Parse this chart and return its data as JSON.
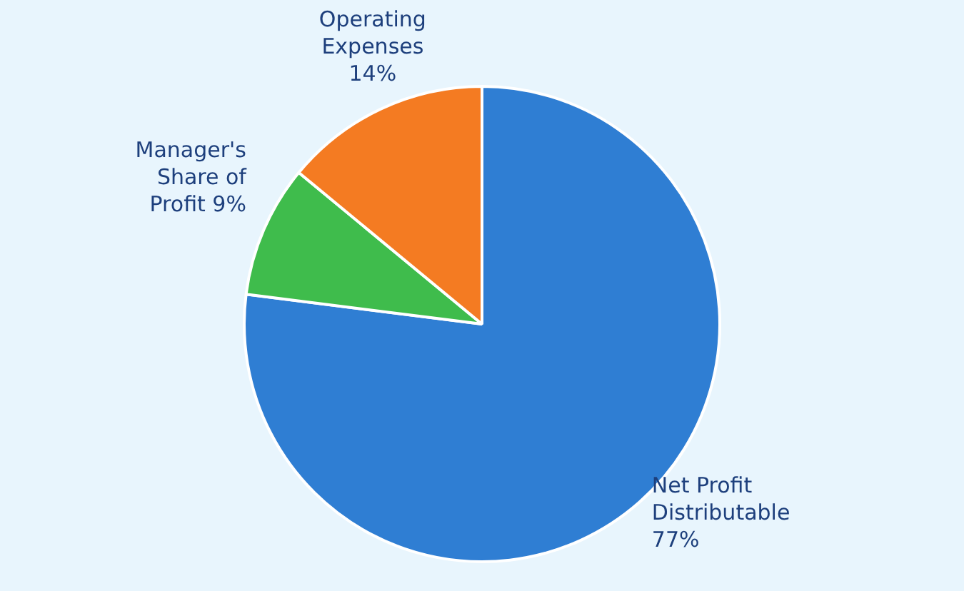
{
  "chart_data": {
    "type": "pie",
    "categories": [
      "Net Profit Distributable",
      "Manager's Share of Profit",
      "Operating Expenses"
    ],
    "values": [
      77,
      9,
      14
    ],
    "value_labels": [
      "77%",
      "9%",
      "14%"
    ],
    "colors": [
      "#2f7ed3",
      "#3fbc4c",
      "#f47b22"
    ],
    "legend": false
  }
}
